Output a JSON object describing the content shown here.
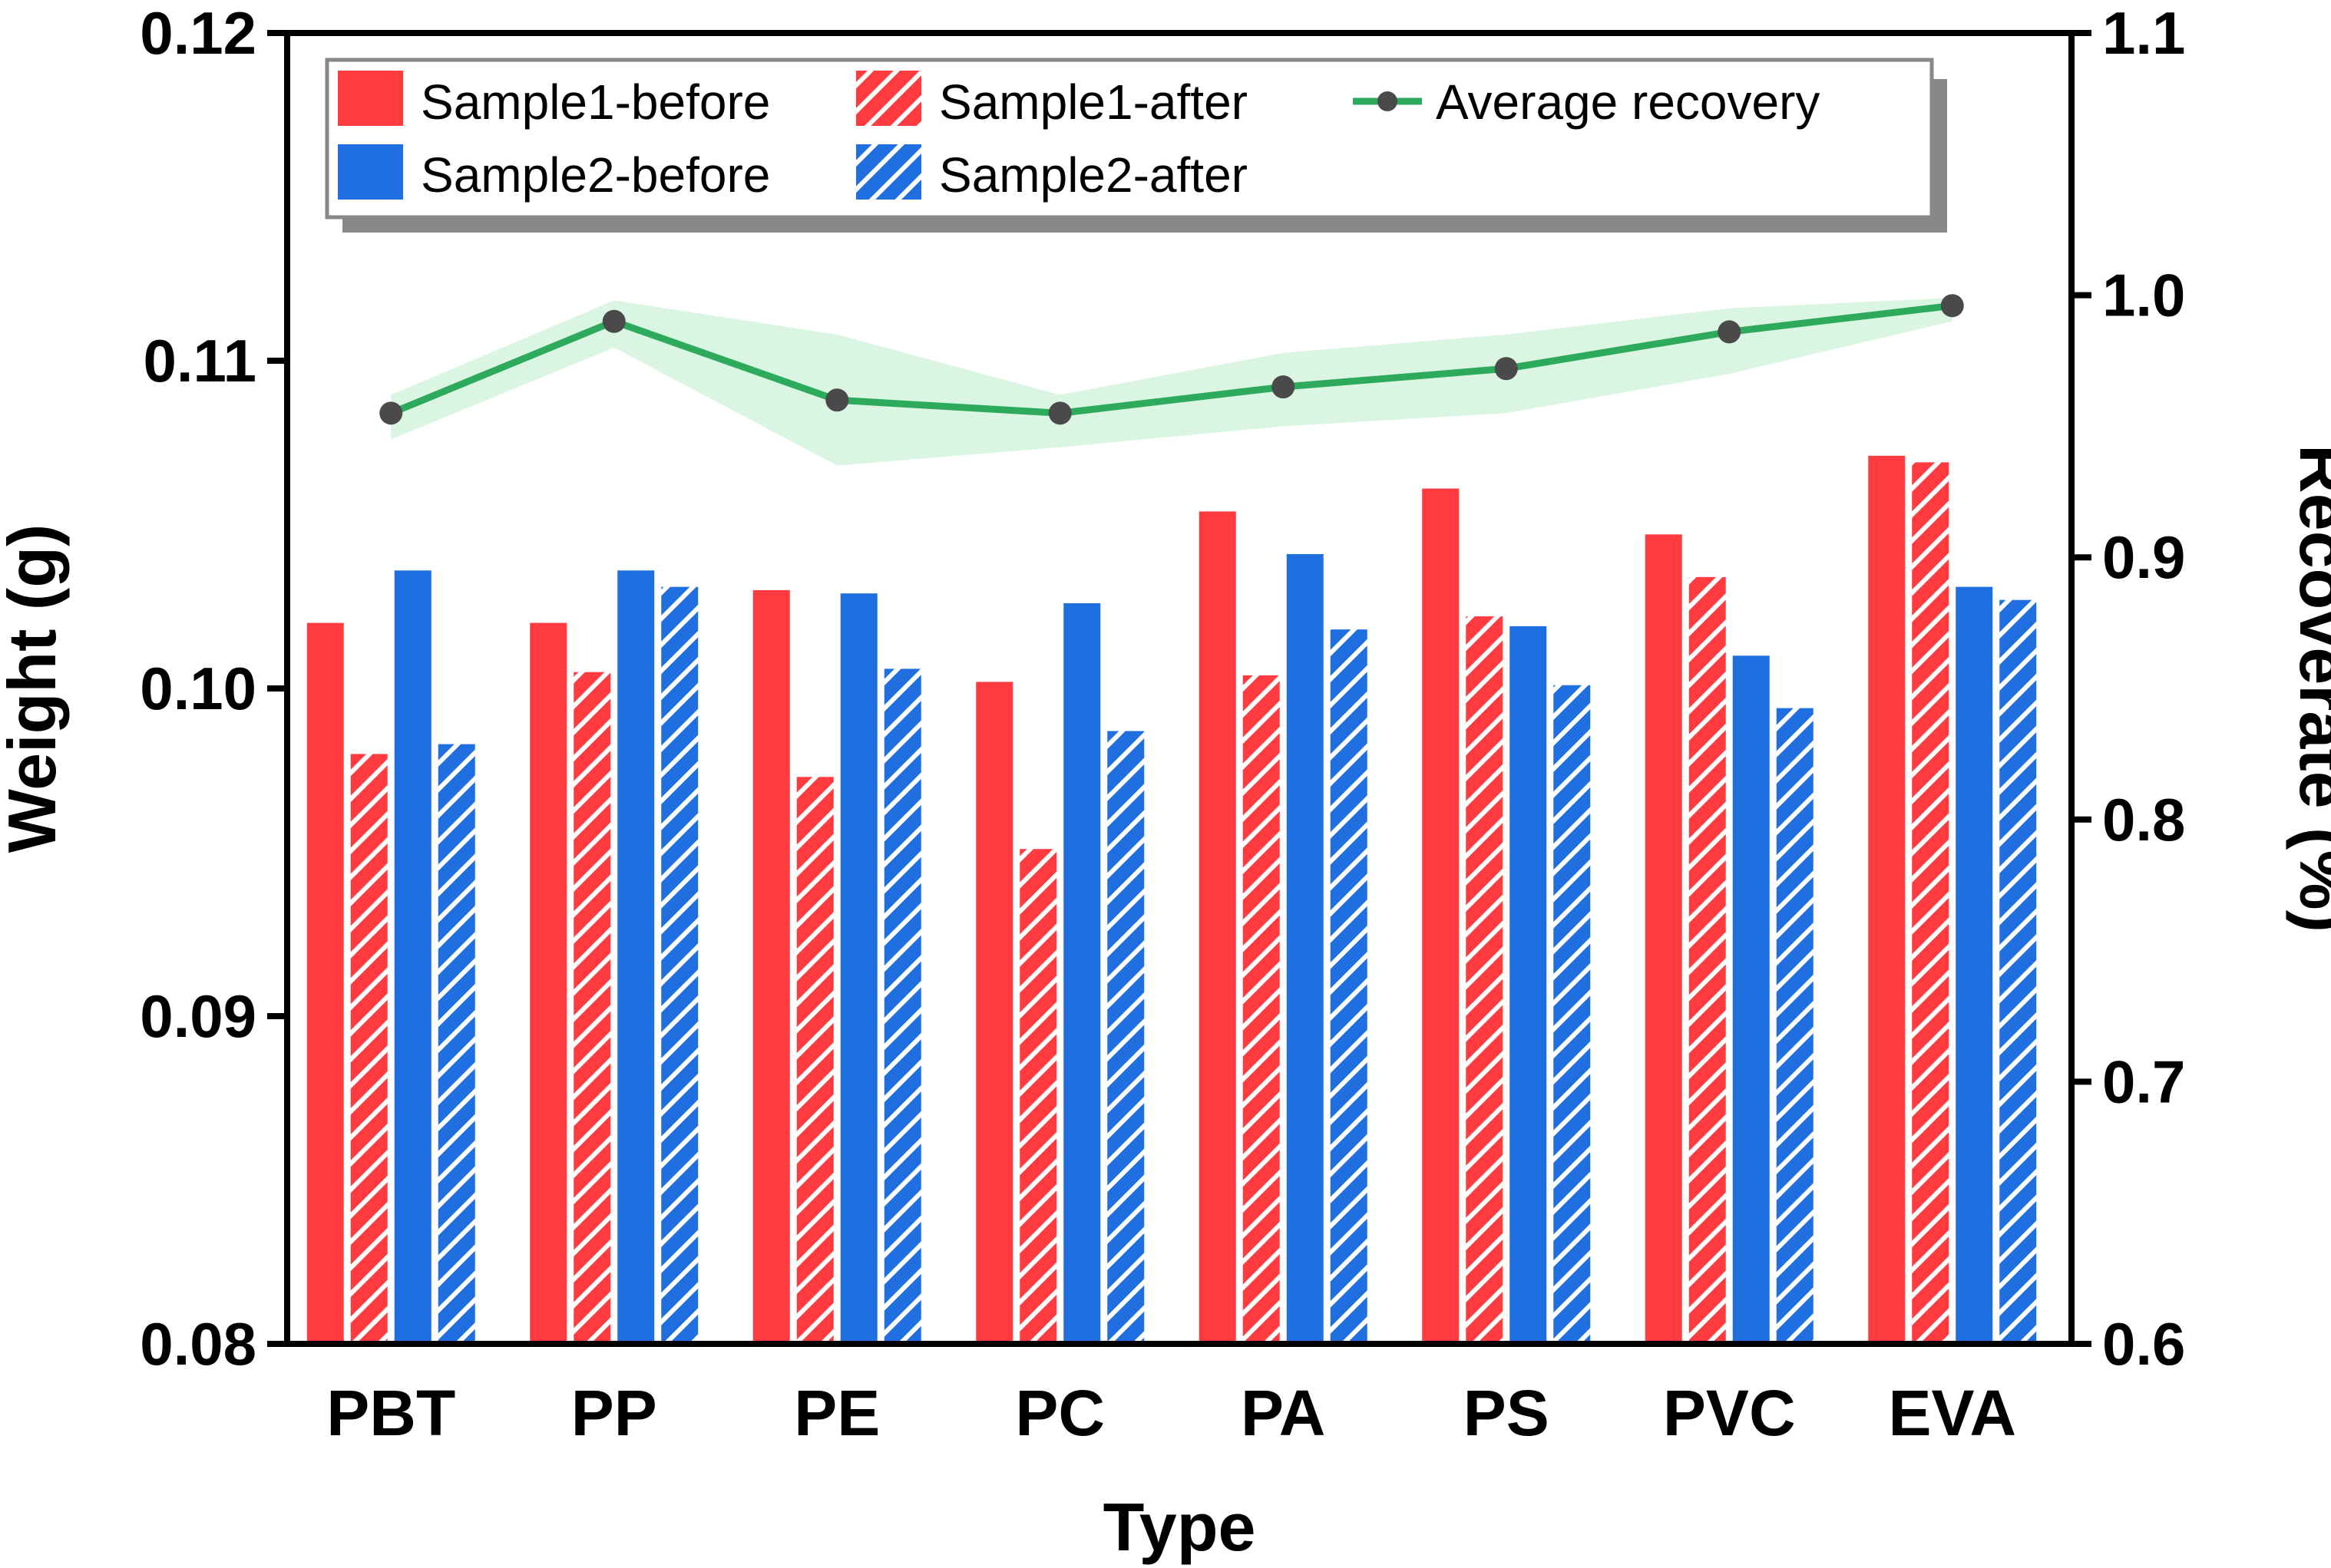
{
  "chart_data": {
    "type": "bar",
    "categories": [
      "PBT",
      "PP",
      "PE",
      "PC",
      "PA",
      "PS",
      "PVC",
      "EVA"
    ],
    "series": [
      {
        "name": "Sample1-before",
        "color": "#ff3b3f",
        "pattern": "solid",
        "values": [
          0.102,
          0.102,
          0.103,
          0.1002,
          0.1054,
          0.1061,
          0.1047,
          0.1071
        ]
      },
      {
        "name": "Sample1-after",
        "color": "#ff3b3f",
        "pattern": "hatched",
        "values": [
          0.098,
          0.1005,
          0.0973,
          0.0951,
          0.1004,
          0.1022,
          0.1034,
          0.1069
        ]
      },
      {
        "name": "Sample2-before",
        "color": "#1f6fe0",
        "pattern": "solid",
        "values": [
          0.1036,
          0.1036,
          0.1029,
          0.1026,
          0.1041,
          0.1019,
          0.101,
          0.1031
        ]
      },
      {
        "name": "Sample2-after",
        "color": "#1f6fe0",
        "pattern": "hatched",
        "values": [
          0.0983,
          0.1031,
          0.1006,
          0.0987,
          0.1018,
          0.1001,
          0.0994,
          0.1027
        ]
      }
    ],
    "line_series": {
      "name": "Average recovery",
      "color": "#2eaa5c",
      "marker_color": "#4a4a4a",
      "band_color": "#d6f5e0",
      "axis": "right",
      "values": [
        0.955,
        0.99,
        0.96,
        0.955,
        0.965,
        0.972,
        0.986,
        0.996
      ],
      "band_lower": [
        0.945,
        0.98,
        0.935,
        0.942,
        0.95,
        0.955,
        0.97,
        0.99
      ],
      "band_upper": [
        0.962,
        0.998,
        0.985,
        0.962,
        0.978,
        0.985,
        0.995,
        0.999
      ]
    },
    "title": "",
    "xlabel": "Type",
    "ylabel": "Weight (g)",
    "y2label": "Recoverate (%)",
    "ylim": [
      0.08,
      0.12
    ],
    "y2lim": [
      0.6,
      1.1
    ],
    "yticks": [
      "0.08",
      "0.09",
      "0.10",
      "0.11",
      "0.12"
    ],
    "y2ticks": [
      "0.6",
      "0.7",
      "0.8",
      "0.9",
      "1.0",
      "1.1"
    ],
    "legend_position": "top-left",
    "grid": false
  }
}
